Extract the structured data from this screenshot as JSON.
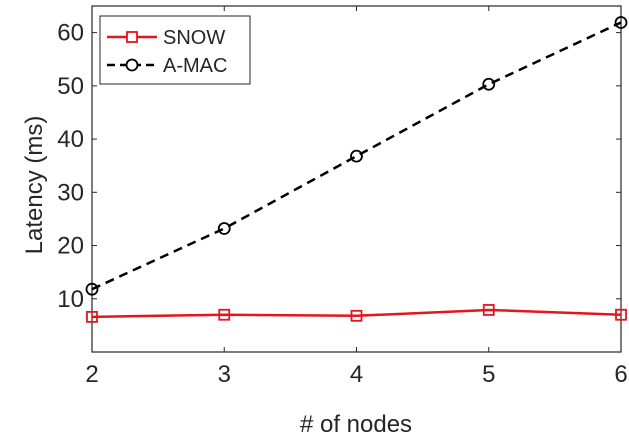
{
  "chart_data": {
    "type": "line",
    "title": "",
    "xlabel": "# of nodes",
    "ylabel": "Latency (ms)",
    "xlim": [
      2,
      6
    ],
    "ylim": [
      0,
      65
    ],
    "x_ticks": [
      "2",
      "3",
      "4",
      "5",
      "6"
    ],
    "y_ticks": [
      "10",
      "20",
      "30",
      "40",
      "50",
      "60"
    ],
    "grid": false,
    "legend_position": "top-left",
    "x": [
      2,
      3,
      4,
      5,
      6
    ],
    "series": [
      {
        "name": "SNOW",
        "values": [
          6.6,
          7.0,
          6.8,
          7.9,
          7.0
        ],
        "color": "#e8141c",
        "marker": "square",
        "line_style": "solid"
      },
      {
        "name": "A-MAC",
        "values": [
          11.8,
          23.2,
          36.8,
          50.3,
          61.9
        ],
        "color": "#000000",
        "marker": "circle",
        "line_style": "dashed"
      }
    ]
  }
}
